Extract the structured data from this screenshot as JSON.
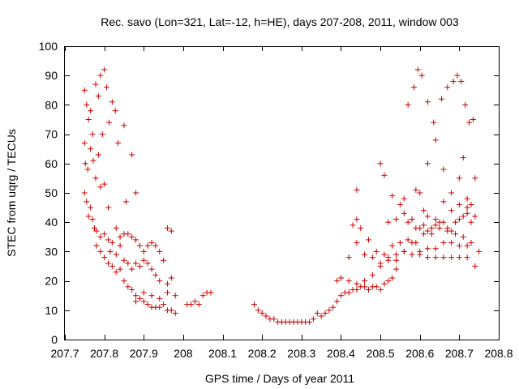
{
  "chart_data": {
    "type": "scatter",
    "title": "Rec. savo (Lon=321, Lat=-12, h=HE), days 207-208, 2011, window 003",
    "xlabel": "GPS time / Days of year 2011",
    "ylabel": "STEC from uqrg / TECUs",
    "xlim": [
      207.7,
      208.8
    ],
    "ylim": [
      0,
      100
    ],
    "xticks": [
      207.7,
      207.8,
      207.9,
      208.0,
      208.1,
      208.2,
      208.3,
      208.4,
      208.5,
      208.6,
      208.7,
      208.8
    ],
    "xtick_labels": [
      "207.7",
      "207.8",
      "207.9",
      "208",
      "208.1",
      "208.2",
      "208.3",
      "208.4",
      "208.5",
      "208.6",
      "208.7",
      "208.8"
    ],
    "yticks": [
      0,
      10,
      20,
      30,
      40,
      50,
      60,
      70,
      80,
      90,
      100
    ],
    "ytick_labels": [
      "0",
      "10",
      "20",
      "30",
      "40",
      "50",
      "60",
      "70",
      "80",
      "90",
      "100"
    ],
    "grid": false,
    "legend": "none",
    "marker": "+",
    "marker_color": "#cc0000",
    "points": [
      [
        207.75,
        85
      ],
      [
        207.755,
        80
      ],
      [
        207.76,
        75
      ],
      [
        207.765,
        78
      ],
      [
        207.77,
        70
      ],
      [
        207.778,
        87
      ],
      [
        207.785,
        83
      ],
      [
        207.79,
        90
      ],
      [
        207.795,
        70
      ],
      [
        207.8,
        92
      ],
      [
        207.806,
        86
      ],
      [
        207.812,
        74
      ],
      [
        207.82,
        81
      ],
      [
        207.828,
        78
      ],
      [
        207.835,
        67
      ],
      [
        207.85,
        73
      ],
      [
        207.87,
        63
      ],
      [
        207.75,
        67
      ],
      [
        207.752,
        60
      ],
      [
        207.758,
        58
      ],
      [
        207.765,
        65
      ],
      [
        207.772,
        61
      ],
      [
        207.778,
        55
      ],
      [
        207.785,
        63
      ],
      [
        207.79,
        52
      ],
      [
        207.8,
        53
      ],
      [
        207.81,
        45
      ],
      [
        207.83,
        38
      ],
      [
        207.84,
        32
      ],
      [
        207.855,
        47
      ],
      [
        207.88,
        50
      ],
      [
        207.75,
        50
      ],
      [
        207.755,
        47
      ],
      [
        207.76,
        42
      ],
      [
        207.765,
        45
      ],
      [
        207.77,
        41
      ],
      [
        207.775,
        38
      ],
      [
        207.78,
        37
      ],
      [
        207.79,
        35
      ],
      [
        207.8,
        36
      ],
      [
        207.81,
        34
      ],
      [
        207.815,
        30
      ],
      [
        207.82,
        33
      ],
      [
        207.83,
        29
      ],
      [
        207.84,
        35
      ],
      [
        207.85,
        36
      ],
      [
        207.86,
        36
      ],
      [
        207.87,
        35
      ],
      [
        207.88,
        34
      ],
      [
        207.89,
        32
      ],
      [
        207.9,
        30
      ],
      [
        207.91,
        32
      ],
      [
        207.92,
        33
      ],
      [
        207.93,
        32
      ],
      [
        207.94,
        30
      ],
      [
        207.96,
        38
      ],
      [
        207.97,
        37
      ],
      [
        207.78,
        32
      ],
      [
        207.79,
        30
      ],
      [
        207.8,
        28
      ],
      [
        207.81,
        26
      ],
      [
        207.82,
        25
      ],
      [
        207.83,
        23
      ],
      [
        207.84,
        24
      ],
      [
        207.85,
        27
      ],
      [
        207.86,
        26
      ],
      [
        207.87,
        24
      ],
      [
        207.88,
        26
      ],
      [
        207.89,
        25
      ],
      [
        207.9,
        27
      ],
      [
        207.91,
        26
      ],
      [
        207.92,
        24
      ],
      [
        207.93,
        22
      ],
      [
        207.94,
        20
      ],
      [
        207.95,
        27
      ],
      [
        207.96,
        19
      ],
      [
        207.97,
        21
      ],
      [
        207.85,
        20
      ],
      [
        207.86,
        18
      ],
      [
        207.87,
        17
      ],
      [
        207.88,
        15
      ],
      [
        207.89,
        14
      ],
      [
        207.9,
        13
      ],
      [
        207.91,
        12
      ],
      [
        207.92,
        11
      ],
      [
        207.93,
        11
      ],
      [
        207.94,
        11
      ],
      [
        207.95,
        12
      ],
      [
        207.96,
        10
      ],
      [
        207.97,
        10
      ],
      [
        207.98,
        9
      ],
      [
        207.88,
        13
      ],
      [
        207.9,
        16
      ],
      [
        207.92,
        15
      ],
      [
        207.94,
        14
      ],
      [
        207.96,
        16
      ],
      [
        207.98,
        15
      ],
      [
        208.01,
        12
      ],
      [
        208.02,
        12
      ],
      [
        208.03,
        13
      ],
      [
        208.04,
        12
      ],
      [
        208.05,
        15
      ],
      [
        208.06,
        16
      ],
      [
        208.07,
        16
      ],
      [
        208.18,
        12
      ],
      [
        208.19,
        10
      ],
      [
        208.2,
        9
      ],
      [
        208.21,
        8
      ],
      [
        208.22,
        7
      ],
      [
        208.23,
        7
      ],
      [
        208.24,
        6
      ],
      [
        208.25,
        6
      ],
      [
        208.26,
        6
      ],
      [
        208.27,
        6
      ],
      [
        208.28,
        6
      ],
      [
        208.29,
        6
      ],
      [
        208.3,
        6
      ],
      [
        208.31,
        6
      ],
      [
        208.32,
        6
      ],
      [
        208.33,
        7
      ],
      [
        208.34,
        9
      ],
      [
        208.35,
        8
      ],
      [
        208.36,
        9
      ],
      [
        208.37,
        10
      ],
      [
        208.38,
        11
      ],
      [
        208.39,
        13
      ],
      [
        208.4,
        15
      ],
      [
        208.41,
        16
      ],
      [
        208.42,
        16
      ],
      [
        208.43,
        17
      ],
      [
        208.44,
        17
      ],
      [
        208.45,
        18
      ],
      [
        208.46,
        18
      ],
      [
        208.47,
        17
      ],
      [
        208.48,
        18
      ],
      [
        208.49,
        18
      ],
      [
        208.5,
        17
      ],
      [
        208.51,
        19
      ],
      [
        208.52,
        20
      ],
      [
        208.53,
        21
      ],
      [
        208.54,
        24
      ],
      [
        208.39,
        20
      ],
      [
        208.4,
        21
      ],
      [
        208.42,
        20
      ],
      [
        208.44,
        19
      ],
      [
        208.46,
        20
      ],
      [
        208.48,
        22
      ],
      [
        208.5,
        26
      ],
      [
        208.52,
        27
      ],
      [
        208.54,
        29
      ],
      [
        208.56,
        30
      ],
      [
        208.58,
        29
      ],
      [
        208.6,
        30
      ],
      [
        208.62,
        31
      ],
      [
        208.64,
        31
      ],
      [
        208.66,
        33
      ],
      [
        208.68,
        33
      ],
      [
        208.7,
        32
      ],
      [
        208.72,
        32
      ],
      [
        208.42,
        28
      ],
      [
        208.44,
        33
      ],
      [
        208.46,
        29
      ],
      [
        208.48,
        28
      ],
      [
        208.5,
        25
      ],
      [
        208.52,
        28
      ],
      [
        208.54,
        27
      ],
      [
        208.56,
        30
      ],
      [
        208.58,
        33
      ],
      [
        208.6,
        29
      ],
      [
        208.62,
        28
      ],
      [
        208.64,
        28
      ],
      [
        208.66,
        28
      ],
      [
        208.68,
        28
      ],
      [
        208.7,
        28
      ],
      [
        208.72,
        28
      ],
      [
        208.74,
        25
      ],
      [
        208.43,
        39
      ],
      [
        208.44,
        41
      ],
      [
        208.45,
        38
      ],
      [
        208.47,
        34
      ],
      [
        208.49,
        30
      ],
      [
        208.51,
        29
      ],
      [
        208.53,
        32
      ],
      [
        208.55,
        33
      ],
      [
        208.57,
        34
      ],
      [
        208.59,
        33
      ],
      [
        208.61,
        36
      ],
      [
        208.63,
        36
      ],
      [
        208.65,
        38
      ],
      [
        208.67,
        37
      ],
      [
        208.69,
        36
      ],
      [
        208.71,
        35
      ],
      [
        208.73,
        33
      ],
      [
        208.52,
        40
      ],
      [
        208.54,
        41
      ],
      [
        208.55,
        46
      ],
      [
        208.56,
        43
      ],
      [
        208.57,
        40
      ],
      [
        208.58,
        41
      ],
      [
        208.59,
        38
      ],
      [
        208.6,
        38
      ],
      [
        208.61,
        39
      ],
      [
        208.62,
        37
      ],
      [
        208.63,
        38
      ],
      [
        208.64,
        39
      ],
      [
        208.65,
        40
      ],
      [
        208.66,
        40
      ],
      [
        208.67,
        38
      ],
      [
        208.68,
        37
      ],
      [
        208.69,
        40
      ],
      [
        208.7,
        41
      ],
      [
        208.71,
        42
      ],
      [
        208.72,
        43
      ],
      [
        208.73,
        40
      ],
      [
        208.44,
        51
      ],
      [
        208.5,
        60
      ],
      [
        208.51,
        56
      ],
      [
        208.53,
        49
      ],
      [
        208.56,
        48
      ],
      [
        208.58,
        41
      ],
      [
        208.59,
        51
      ],
      [
        208.6,
        50
      ],
      [
        208.61,
        44
      ],
      [
        208.62,
        42
      ],
      [
        208.64,
        41
      ],
      [
        208.66,
        47
      ],
      [
        208.68,
        44
      ],
      [
        208.7,
        46
      ],
      [
        208.72,
        45
      ],
      [
        208.73,
        46
      ],
      [
        208.74,
        55
      ],
      [
        208.57,
        80
      ],
      [
        208.585,
        86
      ],
      [
        208.595,
        92
      ],
      [
        208.605,
        90
      ],
      [
        208.62,
        81
      ],
      [
        208.635,
        74
      ],
      [
        208.655,
        82
      ],
      [
        208.67,
        86
      ],
      [
        208.685,
        88
      ],
      [
        208.695,
        90
      ],
      [
        208.705,
        88
      ],
      [
        208.715,
        80
      ],
      [
        208.725,
        74
      ],
      [
        208.735,
        75
      ],
      [
        208.62,
        60
      ],
      [
        208.64,
        68
      ],
      [
        208.66,
        58
      ],
      [
        208.68,
        50
      ],
      [
        208.7,
        55
      ],
      [
        208.71,
        62
      ],
      [
        208.72,
        48
      ],
      [
        208.74,
        42
      ],
      [
        208.75,
        30
      ]
    ]
  }
}
